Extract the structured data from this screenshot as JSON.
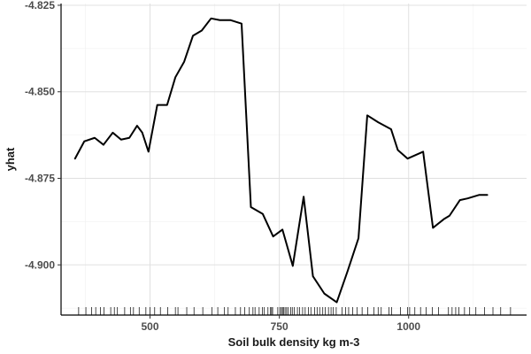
{
  "chart_data": {
    "type": "line",
    "title": "",
    "xlabel": "Soil bulk density kg m-3",
    "ylabel": "yhat",
    "xlim": [
      328,
      1228
    ],
    "ylim": [
      -4.9145,
      -4.8245
    ],
    "xticks": [
      500,
      750,
      1000
    ],
    "xtick_labels": [
      "500",
      "750",
      "1000"
    ],
    "yticks": [
      -4.825,
      -4.85,
      -4.875,
      -4.9
    ],
    "ytick_labels": [
      "-4.825",
      "-4.850",
      "-4.875",
      "-4.900"
    ],
    "grid": true,
    "legend": "none",
    "colors": {
      "line": "#000000",
      "grid_major": "#e0e0e0",
      "grid_minor": "#f0f0f0",
      "axis": "#000000",
      "rug": "#000000",
      "panel": "#ffffff"
    },
    "series": [
      {
        "x": [
          355,
          373,
          393,
          410,
          428,
          444,
          460,
          475,
          485,
          497,
          514,
          533,
          549,
          566,
          583,
          600,
          618,
          635,
          656,
          677,
          695,
          718,
          738,
          756,
          776,
          797,
          815,
          837,
          861,
          882,
          903,
          920,
          941,
          966,
          979,
          998,
          1013,
          1028,
          1047,
          1068,
          1079,
          1099,
          1114,
          1136,
          1152
        ],
        "y": [
          -4.8693,
          -4.8643,
          -4.8633,
          -4.8653,
          -4.8618,
          -4.8638,
          -4.8633,
          -4.8598,
          -4.8618,
          -4.8673,
          -4.8538,
          -4.8538,
          -4.8458,
          -4.8413,
          -4.8338,
          -4.8323,
          -4.8288,
          -4.8293,
          -4.8293,
          -4.8303,
          -4.8833,
          -4.8853,
          -4.8918,
          -4.8898,
          -4.9003,
          -4.8803,
          -4.9033,
          -4.9083,
          -4.9108,
          -4.9018,
          -4.8923,
          -4.8568,
          -4.8588,
          -4.8608,
          -4.8668,
          -4.8693,
          -4.8683,
          -4.8673,
          -4.8893,
          -4.8868,
          -4.8858,
          -4.8813,
          -4.8808,
          -4.8798,
          -4.8798
        ]
      }
    ],
    "rug_x": [
      362,
      376,
      387,
      395,
      404,
      411,
      424,
      431,
      437,
      451,
      462,
      468,
      479,
      492,
      500,
      509,
      520,
      534,
      549,
      554,
      571,
      585,
      602,
      620,
      631,
      644,
      651,
      665,
      675,
      683,
      692,
      699,
      703,
      711,
      717,
      721,
      728,
      733,
      735,
      737,
      747,
      751,
      754,
      756,
      758,
      761,
      764,
      767,
      772,
      775,
      779,
      785,
      789,
      795,
      800,
      806,
      811,
      818,
      823,
      828,
      834,
      839,
      845,
      850,
      854,
      860,
      871,
      878,
      884,
      892,
      900,
      910,
      921,
      933,
      941,
      947,
      962,
      967,
      984,
      998,
      1002,
      1012,
      1023,
      1034,
      1046,
      1058,
      1077,
      1084,
      1091,
      1097,
      1108,
      1118,
      1130,
      1147,
      1163,
      1178,
      1197
    ]
  }
}
